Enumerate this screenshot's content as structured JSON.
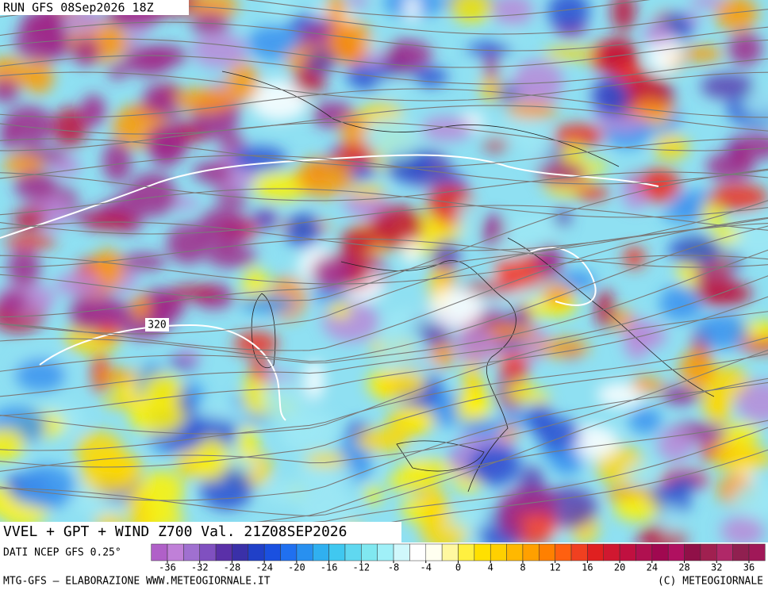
{
  "header": {
    "run": "RUN GFS 08Sep2026 18Z"
  },
  "map": {
    "contour_label": "320"
  },
  "caption": {
    "title": "VVEL + GPT + WIND Z700 Val. 21Z08SEP2026",
    "source": "DATI NCEP GFS 0.25°"
  },
  "colorbar": {
    "ticks": [
      -36,
      -32,
      -28,
      -24,
      -20,
      -16,
      -12,
      -8,
      -4,
      0,
      4,
      8,
      12,
      16,
      20,
      24,
      28,
      32,
      36
    ]
  },
  "footer": {
    "left": "MTG-GFS – ELABORAZIONE WWW.METEOGIORNALE.IT",
    "right": "(C) METEOGIORNALE"
  }
}
